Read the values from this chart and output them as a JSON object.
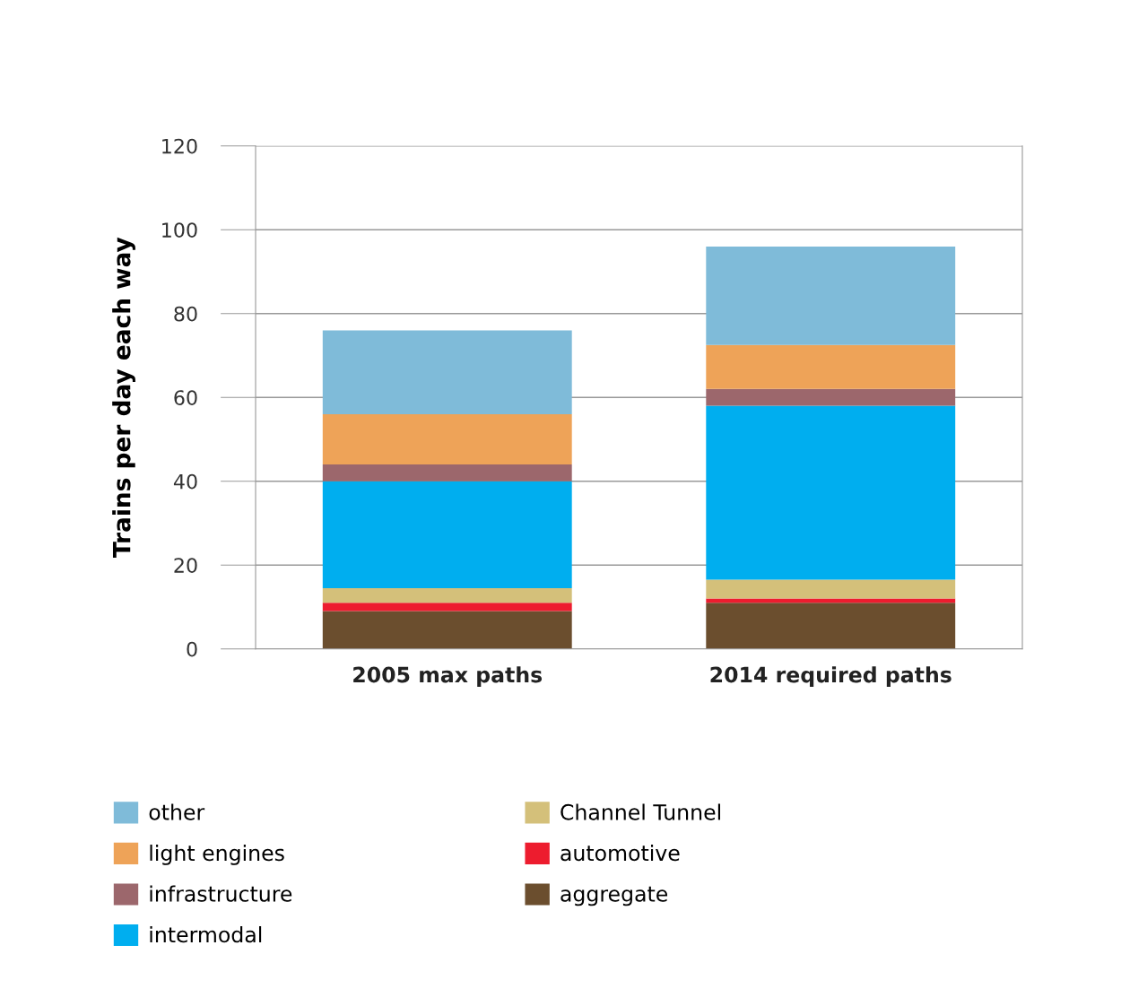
{
  "chart_data": {
    "type": "bar",
    "stacked": true,
    "ylabel": "Trains per day each way",
    "categories": [
      "2005 max paths",
      "2014 required paths"
    ],
    "series": [
      {
        "name": "aggregate",
        "color": "#6b4e2e",
        "values": [
          9,
          11
        ]
      },
      {
        "name": "automotive",
        "color": "#ed1c2e",
        "values": [
          2,
          1
        ]
      },
      {
        "name": "Channel Tunnel",
        "color": "#d4c07a",
        "values": [
          3.5,
          4.5
        ]
      },
      {
        "name": "intermodal",
        "color": "#00aeef",
        "values": [
          25.5,
          41.5
        ]
      },
      {
        "name": "infrastructure",
        "color": "#9c676c",
        "values": [
          4,
          4
        ]
      },
      {
        "name": "light engines",
        "color": "#eea358",
        "values": [
          12,
          10.5
        ]
      },
      {
        "name": "other",
        "color": "#7fbbd9",
        "values": [
          20,
          23.5
        ]
      }
    ],
    "ylim": [
      0,
      120
    ],
    "yticks": [
      0,
      20,
      40,
      60,
      80,
      100,
      120
    ],
    "grid": "y",
    "legend": "bottom"
  }
}
